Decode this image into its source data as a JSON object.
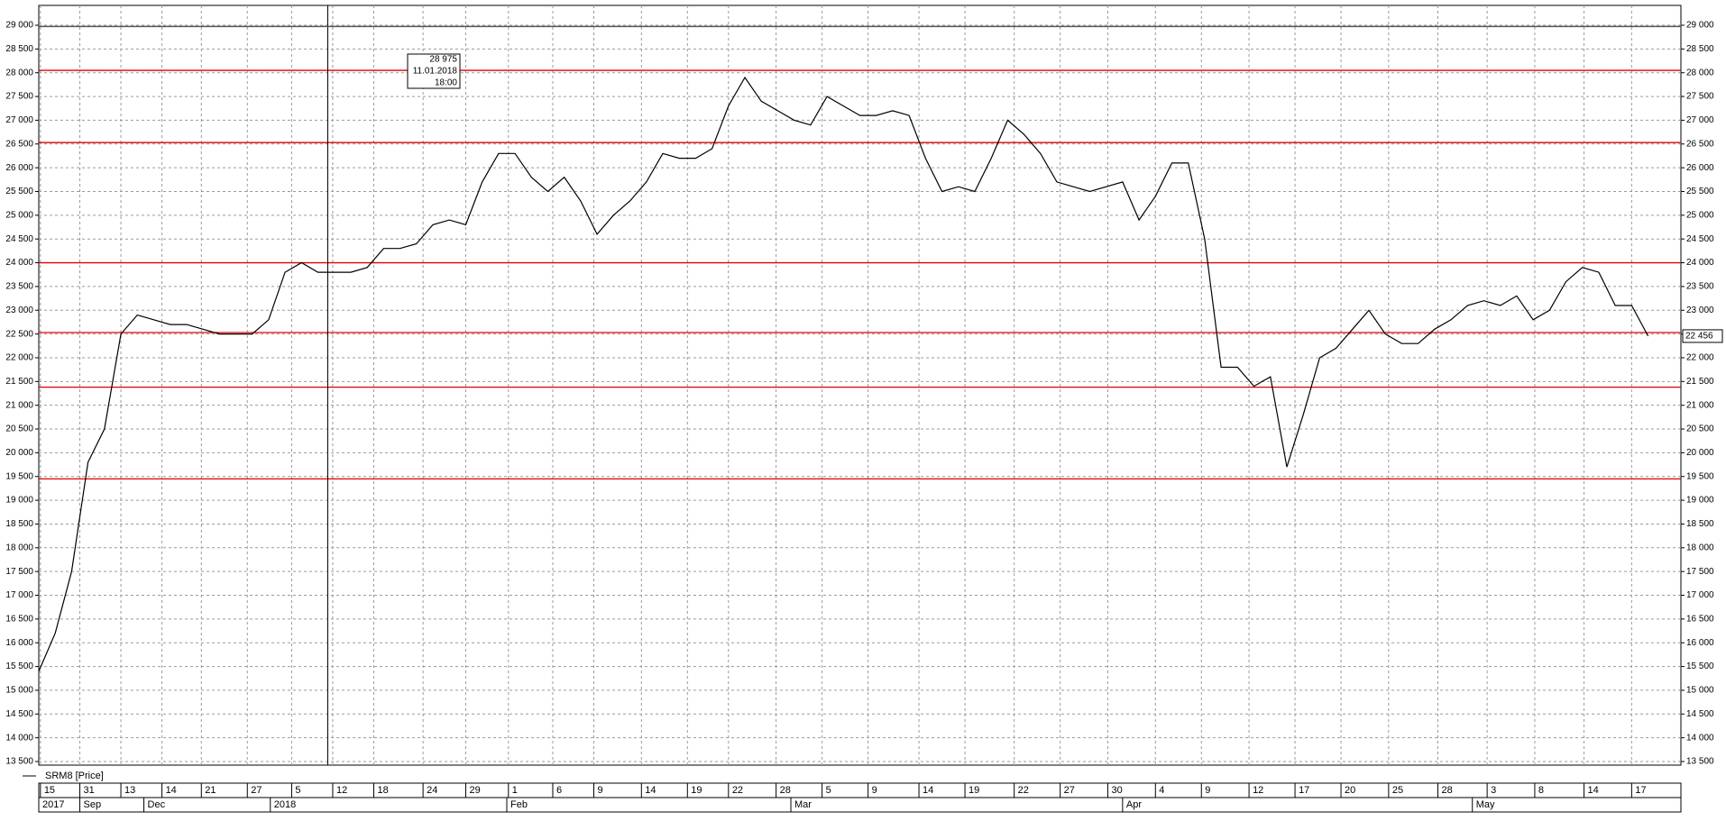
{
  "chart_data": {
    "type": "line",
    "series": [
      {
        "name": "SRM8 [Price]",
        "color": "#000000",
        "values": [
          15400,
          16200,
          17500,
          19800,
          20500,
          22500,
          22900,
          22800,
          22700,
          22700,
          22600,
          22500,
          22500,
          22500,
          22800,
          23800,
          24000,
          23800,
          23800,
          23800,
          23900,
          24300,
          24300,
          24400,
          24800,
          24900,
          24800,
          25700,
          26300,
          26300,
          25800,
          25500,
          25800,
          25300,
          24600,
          25000,
          25300,
          25700,
          26300,
          26200,
          26200,
          26400,
          27300,
          27900,
          27400,
          27200,
          27000,
          26900,
          27500,
          27300,
          27100,
          27100,
          27200,
          27100,
          26200,
          25500,
          25600,
          25500,
          26200,
          27000,
          26700,
          26300,
          25700,
          25600,
          25500,
          25600,
          25700,
          24900,
          25400,
          26100,
          26100,
          24500,
          21800,
          21800,
          21400,
          21600,
          19700,
          20800,
          22000,
          22200,
          22600,
          23000,
          22500,
          22300,
          22300,
          22600,
          22800,
          23100,
          23200,
          23100,
          23300,
          22800,
          23000,
          23600,
          23900,
          23800,
          23100,
          23100,
          22456
        ]
      }
    ],
    "xlim": [
      0,
      100
    ],
    "ylim": [
      13500,
      29000
    ],
    "yticks": [
      {
        "value": 13500,
        "label": "13 500"
      },
      {
        "value": 14000,
        "label": "14 000"
      },
      {
        "value": 14500,
        "label": "14 500"
      },
      {
        "value": 15000,
        "label": "15 000"
      },
      {
        "value": 15500,
        "label": "15 500"
      },
      {
        "value": 16000,
        "label": "16 000"
      },
      {
        "value": 16500,
        "label": "16 500"
      },
      {
        "value": 17000,
        "label": "17 000"
      },
      {
        "value": 17500,
        "label": "17 500"
      },
      {
        "value": 18000,
        "label": "18 000"
      },
      {
        "value": 18500,
        "label": "18 500"
      },
      {
        "value": 19000,
        "label": "19 000"
      },
      {
        "value": 19500,
        "label": "19 500"
      },
      {
        "value": 20000,
        "label": "20 000"
      },
      {
        "value": 20500,
        "label": "20 500"
      },
      {
        "value": 21000,
        "label": "21 000"
      },
      {
        "value": 21500,
        "label": "21 500"
      },
      {
        "value": 22000,
        "label": "22 000"
      },
      {
        "value": 22500,
        "label": "22 500"
      },
      {
        "value": 23000,
        "label": "23 000"
      },
      {
        "value": 23500,
        "label": "23 500"
      },
      {
        "value": 24000,
        "label": "24 000"
      },
      {
        "value": 24500,
        "label": "24 500"
      },
      {
        "value": 25000,
        "label": "25 000"
      },
      {
        "value": 25500,
        "label": "25 500"
      },
      {
        "value": 26000,
        "label": "26 000"
      },
      {
        "value": 26500,
        "label": "26 500"
      },
      {
        "value": 27000,
        "label": "27 000"
      },
      {
        "value": 27500,
        "label": "27 500"
      },
      {
        "value": 28000,
        "label": "28 000"
      },
      {
        "value": 28500,
        "label": "28 500"
      },
      {
        "value": 29000,
        "label": "29 000"
      }
    ],
    "xticks": [
      {
        "value": 0.1,
        "label": "15"
      },
      {
        "value": 2.5,
        "label": "31"
      },
      {
        "value": 5.0,
        "label": "13"
      },
      {
        "value": 7.5,
        "label": "14"
      },
      {
        "value": 9.9,
        "label": "21"
      },
      {
        "value": 12.7,
        "label": "27"
      },
      {
        "value": 15.4,
        "label": "5"
      },
      {
        "value": 17.9,
        "label": "12"
      },
      {
        "value": 20.4,
        "label": "18"
      },
      {
        "value": 23.4,
        "label": "24"
      },
      {
        "value": 26.0,
        "label": "29"
      },
      {
        "value": 28.6,
        "label": "1"
      },
      {
        "value": 31.3,
        "label": "6"
      },
      {
        "value": 33.8,
        "label": "9"
      },
      {
        "value": 36.7,
        "label": "14"
      },
      {
        "value": 39.5,
        "label": "19"
      },
      {
        "value": 42.0,
        "label": "22"
      },
      {
        "value": 44.9,
        "label": "28"
      },
      {
        "value": 47.7,
        "label": "5"
      },
      {
        "value": 50.5,
        "label": "9"
      },
      {
        "value": 53.6,
        "label": "14"
      },
      {
        "value": 56.4,
        "label": "19"
      },
      {
        "value": 59.4,
        "label": "22"
      },
      {
        "value": 62.2,
        "label": "27"
      },
      {
        "value": 65.1,
        "label": "30"
      },
      {
        "value": 68.0,
        "label": "4"
      },
      {
        "value": 70.8,
        "label": "9"
      },
      {
        "value": 73.7,
        "label": "12"
      },
      {
        "value": 76.5,
        "label": "17"
      },
      {
        "value": 79.3,
        "label": "20"
      },
      {
        "value": 82.2,
        "label": "25"
      },
      {
        "value": 85.2,
        "label": "28"
      },
      {
        "value": 88.2,
        "label": "3"
      },
      {
        "value": 91.1,
        "label": "8"
      },
      {
        "value": 94.1,
        "label": "14"
      },
      {
        "value": 97.0,
        "label": "17"
      }
    ],
    "month_ticks": [
      {
        "value": 0,
        "label": "2017"
      },
      {
        "value": 2.5,
        "label": "Sep"
      },
      {
        "value": 6.4,
        "label": "Dec"
      },
      {
        "value": 14.1,
        "label": "2018"
      },
      {
        "value": 28.5,
        "label": "Feb"
      },
      {
        "value": 45.8,
        "label": "Mar"
      },
      {
        "value": 66.0,
        "label": "Apr"
      },
      {
        "value": 87.3,
        "label": "May"
      }
    ],
    "levels": [
      28050,
      26530,
      24000,
      22530,
      21380,
      19450
    ],
    "level_color": "#e00000",
    "grid": true,
    "last_price": {
      "value": 22456,
      "label": "22 456"
    },
    "cursor": {
      "x": 17.6,
      "value": {
        "value": 28975,
        "label": "28 975"
      },
      "date": "11.01.2018",
      "time": "18:00"
    }
  }
}
